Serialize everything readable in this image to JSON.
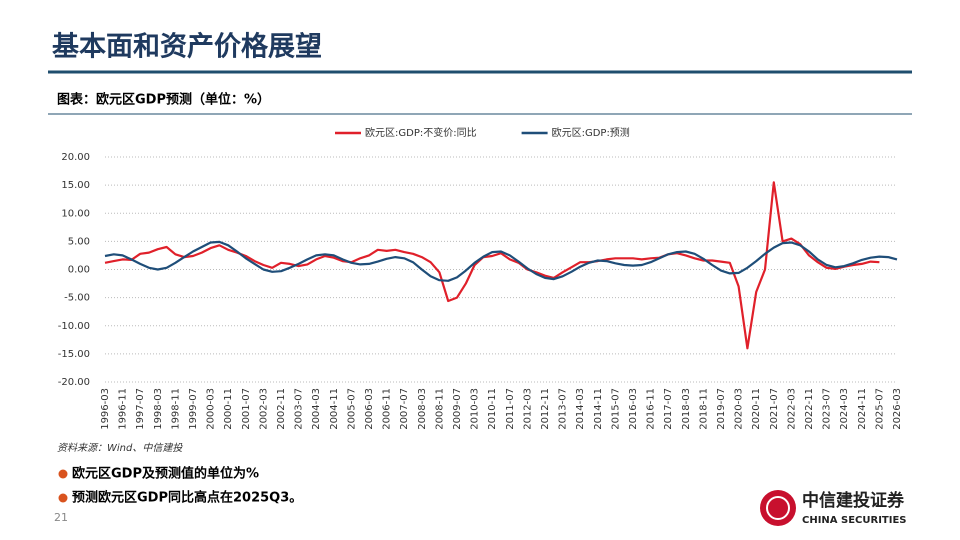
{
  "header": {
    "title": "基本面和资产价格展望",
    "subtitle": "图表：欧元区GDP预测（单位：%）"
  },
  "chart_data": {
    "type": "line",
    "categories": [
      "1996-03",
      null,
      "1996-11",
      null,
      "1997-07",
      null,
      "1998-03",
      null,
      "1998-11",
      null,
      "1999-07",
      null,
      "2000-03",
      null,
      "2000-11",
      null,
      "2001-07",
      null,
      "2002-03",
      null,
      "2002-11",
      null,
      "2003-07",
      null,
      "2004-03",
      null,
      "2004-11",
      null,
      "2005-07",
      null,
      "2006-03",
      null,
      "2006-11",
      null,
      "2007-07",
      null,
      "2008-03",
      null,
      "2008-11",
      null,
      "2009-07",
      null,
      "2010-03",
      null,
      "2010-11",
      null,
      "2011-07",
      null,
      "2012-03",
      null,
      "2012-11",
      null,
      "2013-07",
      null,
      "2014-03",
      null,
      "2014-11",
      null,
      "2015-07",
      null,
      "2016-03",
      null,
      "2016-11",
      null,
      "2017-07",
      null,
      "2018-03",
      null,
      "2018-11",
      null,
      "2019-07",
      null,
      "2020-03",
      null,
      "2020-11",
      null,
      "2021-07",
      null,
      "2022-03",
      null,
      "2022-11",
      null,
      "2023-07",
      null,
      "2024-03",
      null,
      "2024-11",
      null,
      "2025-07",
      null,
      "2026-03"
    ],
    "series": [
      {
        "name": "欧元区:GDP:不变价:同比",
        "color": "#e0202a",
        "values": [
          1.2,
          1.5,
          1.8,
          1.7,
          2.8,
          3.0,
          3.6,
          4.0,
          2.7,
          2.2,
          2.4,
          3.0,
          3.8,
          4.3,
          3.5,
          3.0,
          2.4,
          1.5,
          0.8,
          0.3,
          1.2,
          1.0,
          0.6,
          0.9,
          1.8,
          2.4,
          2.1,
          1.5,
          1.3,
          2.0,
          2.5,
          3.5,
          3.3,
          3.5,
          3.1,
          2.8,
          2.2,
          1.3,
          -0.5,
          -5.6,
          -5.0,
          -2.5,
          0.8,
          2.2,
          2.4,
          2.9,
          1.8,
          1.2,
          0.0,
          -0.5,
          -1.1,
          -1.5,
          -0.5,
          0.4,
          1.3,
          1.3,
          1.5,
          1.8,
          2.0,
          2.0,
          2.0,
          1.8,
          2.0,
          2.1,
          2.7,
          2.9,
          2.5,
          2.0,
          1.6,
          1.6,
          1.4,
          1.2,
          -3.0,
          -14.0,
          -4.0,
          0.0,
          15.5,
          5.0,
          5.5,
          4.5,
          2.5,
          1.3,
          0.3,
          0.1,
          0.5,
          0.8,
          1.0,
          1.4,
          1.3,
          null,
          null
        ]
      },
      {
        "name": "欧元区:GDP:预测",
        "color": "#1f4e79",
        "values": [
          2.4,
          2.7,
          2.5,
          1.8,
          1.0,
          0.3,
          0.0,
          0.3,
          1.2,
          2.2,
          3.2,
          4.0,
          4.8,
          4.9,
          4.3,
          3.2,
          2.0,
          1.0,
          0.0,
          -0.4,
          -0.3,
          0.3,
          1.0,
          1.8,
          2.5,
          2.7,
          2.5,
          1.8,
          1.2,
          0.9,
          1.0,
          1.4,
          1.9,
          2.2,
          2.0,
          1.3,
          0.0,
          -1.2,
          -1.9,
          -2.0,
          -1.4,
          -0.2,
          1.2,
          2.3,
          3.1,
          3.2,
          2.5,
          1.4,
          0.2,
          -0.8,
          -1.5,
          -1.7,
          -1.2,
          -0.4,
          0.5,
          1.2,
          1.6,
          1.5,
          1.1,
          0.8,
          0.7,
          0.8,
          1.3,
          2.0,
          2.7,
          3.1,
          3.2,
          2.8,
          1.9,
          0.8,
          -0.2,
          -0.7,
          -0.6,
          0.3,
          1.5,
          2.8,
          3.9,
          4.7,
          4.8,
          4.3,
          3.2,
          1.8,
          0.8,
          0.4,
          0.6,
          1.1,
          1.7,
          2.1,
          2.3,
          2.2,
          1.8
        ]
      }
    ],
    "ylim": [
      -20,
      20
    ],
    "yticks": [
      {
        "value": -20,
        "label": "-20.00"
      },
      {
        "value": -15,
        "label": "-15.00"
      },
      {
        "value": -10,
        "label": "-10.00"
      },
      {
        "value": -5,
        "label": "-5.00"
      },
      {
        "value": 0,
        "label": "0.00"
      },
      {
        "value": 5,
        "label": "5.00"
      },
      {
        "value": 10,
        "label": "10.00"
      },
      {
        "value": 15,
        "label": "15.00"
      },
      {
        "value": 20,
        "label": "20.00"
      }
    ],
    "grid": true,
    "legend": "top"
  },
  "footer": {
    "source": "资料来源：Wind、中信建投",
    "bullets": [
      "欧元区GDP及预测值的单位为%",
      "预测欧元区GDP同比高点在2025Q3。"
    ],
    "page": "21",
    "logo": "中信建投证券",
    "logo_en": "CHINA SECURITIES"
  }
}
